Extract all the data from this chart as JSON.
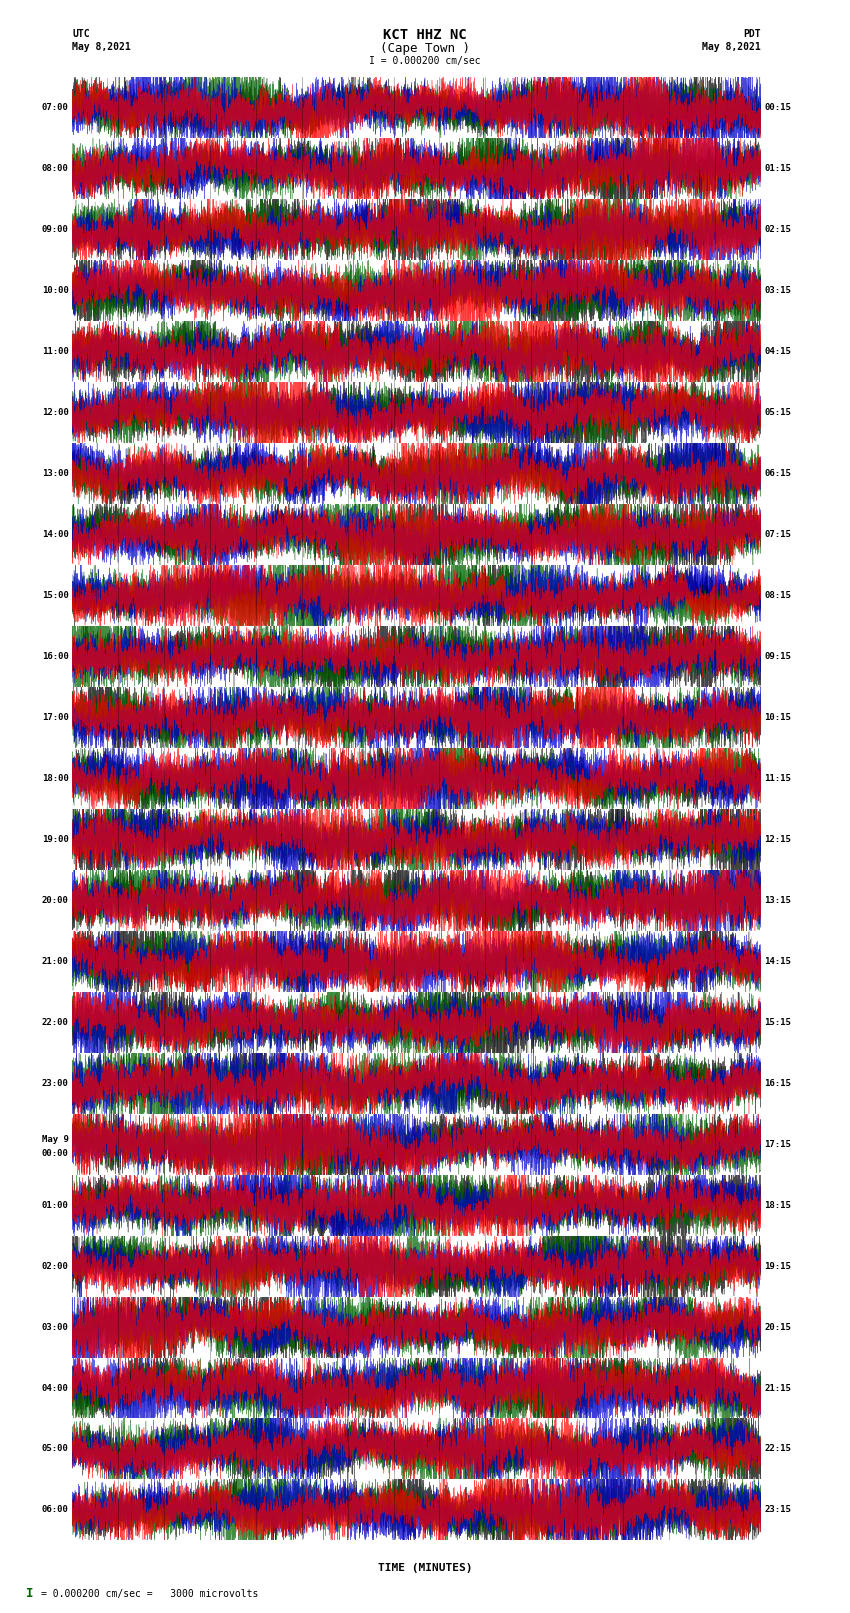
{
  "title_line1": "KCT HHZ NC",
  "title_line2": "(Cape Town )",
  "scale_label": "I = 0.000200 cm/sec",
  "left_header": "UTC",
  "left_date": "May 8,2021",
  "right_header": "PDT",
  "right_date": "May 8,2021",
  "footer_label": "= 0.000200 cm/sec =   3000 microvolts",
  "xlabel": "TIME (MINUTES)",
  "left_times_utc": [
    "07:00",
    "08:00",
    "09:00",
    "10:00",
    "11:00",
    "12:00",
    "13:00",
    "14:00",
    "15:00",
    "16:00",
    "17:00",
    "18:00",
    "19:00",
    "20:00",
    "21:00",
    "22:00",
    "23:00",
    "May 9\n00:00",
    "01:00",
    "02:00",
    "03:00",
    "04:00",
    "05:00",
    "06:00"
  ],
  "right_times_pdt": [
    "00:15",
    "01:15",
    "02:15",
    "03:15",
    "04:15",
    "05:15",
    "06:15",
    "07:15",
    "08:15",
    "09:15",
    "10:15",
    "11:15",
    "12:15",
    "13:15",
    "14:15",
    "15:15",
    "16:15",
    "17:15",
    "18:15",
    "19:15",
    "20:15",
    "21:15",
    "22:15",
    "23:15"
  ],
  "n_rows": 24,
  "minutes_per_row": 15,
  "xlim": [
    0,
    15
  ],
  "xticks": [
    0,
    1,
    2,
    3,
    4,
    5,
    6,
    7,
    8,
    9,
    10,
    11,
    12,
    13,
    14,
    15
  ],
  "background_color": "#ffffff",
  "trace_colors": [
    "#ff0000",
    "#0000cd",
    "#006400",
    "#000000"
  ],
  "seed": 42,
  "line_width": 0.5,
  "sample_rate": 600
}
